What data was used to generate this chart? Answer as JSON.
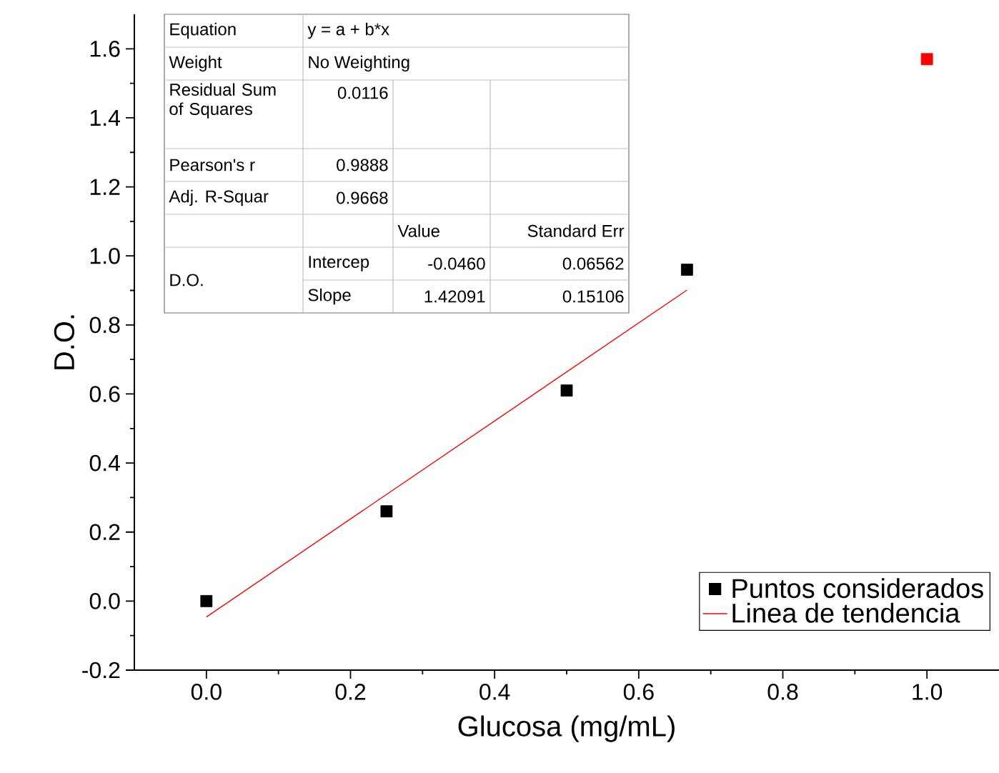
{
  "chart_data": {
    "type": "scatter",
    "xlabel": "Glucosa (mg/mL)",
    "ylabel": "D.O.",
    "xlim": [
      -0.1,
      1.1
    ],
    "ylim": [
      -0.2,
      1.7
    ],
    "xticks": [
      {
        "value": 0,
        "label": "0.0"
      },
      {
        "value": 0.2,
        "label": "0.2"
      },
      {
        "value": 0.4,
        "label": "0.4"
      },
      {
        "value": 0.6,
        "label": "0.6"
      },
      {
        "value": 0.8,
        "label": "0.8"
      },
      {
        "value": 1.0,
        "label": "1.0"
      }
    ],
    "yticks": [
      {
        "value": -0.2,
        "label": "-0.2"
      },
      {
        "value": 0,
        "label": "0.0"
      },
      {
        "value": 0.2,
        "label": "0.2"
      },
      {
        "value": 0.4,
        "label": "0.4"
      },
      {
        "value": 0.6,
        "label": "0.6"
      },
      {
        "value": 0.8,
        "label": "0.8"
      },
      {
        "value": 1.0,
        "label": "1.0"
      },
      {
        "value": 1.2,
        "label": "1.2"
      },
      {
        "value": 1.4,
        "label": "1.4"
      },
      {
        "value": 1.6,
        "label": "1.6"
      }
    ],
    "grid": false,
    "legend": "bottom right",
    "series": [
      {
        "name": "Puntos considerados",
        "marker": "square",
        "color": "#000000",
        "x": [
          0,
          0.25,
          0.5,
          0.667
        ],
        "values": [
          0.0,
          0.26,
          0.61,
          0.96
        ]
      },
      {
        "marker": "square",
        "color": "#ff0000",
        "x": [
          1.0
        ],
        "values": [
          1.57
        ]
      },
      {
        "name": "Linea de tendencia",
        "type": "line",
        "marker": "none",
        "line_style": "solid",
        "color": "#ff0000",
        "x": [
          0,
          0.667
        ],
        "values": [
          -0.046,
          0.901
        ]
      }
    ],
    "annotations": [
      "Equation",
      "y = a + b*x",
      "Weight",
      "No Weighting",
      "Residual Sum of Squares",
      "0.0116",
      "Pearson's r",
      "0.9888",
      "Adj. R-Squar",
      "0.9668",
      "Value",
      "Standard Err",
      "D.O.",
      "Intercep",
      "-0.0460",
      "0.06562",
      "Slope",
      "1.42091",
      "0.15106"
    ]
  }
}
